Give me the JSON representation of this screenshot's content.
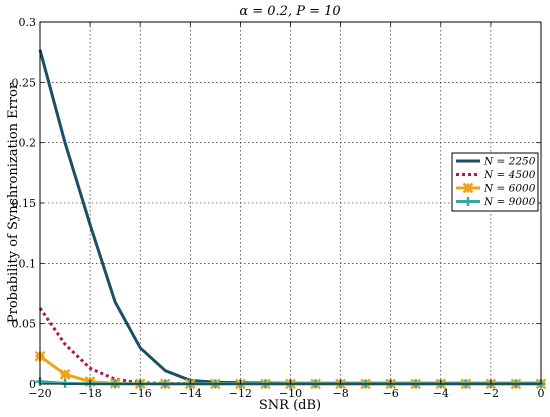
{
  "chart_data": {
    "type": "line",
    "title": "α = 0.2, P = 10",
    "xlabel": "SNR (dB)",
    "ylabel": "Probability of Synchronization Error",
    "xlim": [
      -20,
      0
    ],
    "ylim": [
      0,
      0.3
    ],
    "x_ticks": [
      -20,
      -18,
      -16,
      -14,
      -12,
      -10,
      -8,
      -6,
      -4,
      -2,
      0
    ],
    "x_tick_labels": [
      "−20",
      "−18",
      "−16",
      "−14",
      "−12",
      "−10",
      "−8",
      "−6",
      "−4",
      "−2",
      "0"
    ],
    "y_ticks": [
      0,
      0.05,
      0.1,
      0.15,
      0.2,
      0.25,
      0.3
    ],
    "y_tick_labels": [
      "0",
      "0.05",
      "0.1",
      "0.15",
      "0.2",
      "0.25",
      "0.3"
    ],
    "grid": true,
    "legend_position": "right",
    "x": [
      -20,
      -19,
      -18,
      -17,
      -16,
      -15,
      -14,
      -13,
      -12,
      -11,
      -10,
      -9,
      -8,
      -7,
      -6,
      -5,
      -4,
      -3,
      -2,
      -1,
      0
    ],
    "series": [
      {
        "name": "N = 2250",
        "color": "#1a4f66",
        "style": "solid",
        "marker": "none",
        "values": [
          0.277,
          0.2,
          0.132,
          0.068,
          0.03,
          0.011,
          0.003,
          0.0015,
          0.001,
          0.0008,
          0.0007,
          0.0006,
          0.0006,
          0.0006,
          0.0006,
          0.0006,
          0.0006,
          0.0006,
          0.0006,
          0.0006,
          0.0006
        ]
      },
      {
        "name": "N = 4500",
        "color": "#b0154f",
        "style": "dotted",
        "marker": "none",
        "values": [
          0.063,
          0.033,
          0.013,
          0.004,
          0.001,
          0.0005,
          0.0003,
          0.0002,
          0.0002,
          0.0002,
          0.0002,
          0.0002,
          0.0002,
          0.0002,
          0.0002,
          0.0002,
          0.0002,
          0.0002,
          0.0002,
          0.0002,
          0.0002
        ]
      },
      {
        "name": "N = 6000",
        "color": "#f0a314",
        "style": "solid",
        "marker": "x",
        "values": [
          0.023,
          0.008,
          0.002,
          0.0005,
          0.0002,
          0.0001,
          0.0001,
          0.0001,
          0.0001,
          0.0001,
          0.0001,
          0.0001,
          0.0001,
          0.0001,
          0.0001,
          0.0001,
          0.0001,
          0.0001,
          0.0001,
          0.0001,
          0.0001
        ]
      },
      {
        "name": "N = 9000",
        "color": "#3aa6a6",
        "style": "solid",
        "marker": "plus",
        "values": [
          0.002,
          0.0005,
          0.0002,
          0.0001,
          0.0001,
          0.0001,
          0.0001,
          0.0001,
          0.0001,
          0.0001,
          0.0001,
          0.0001,
          0.0001,
          0.0001,
          0.0001,
          0.0001,
          0.0001,
          0.0001,
          0.0001,
          0.0001,
          0.0001
        ]
      }
    ]
  }
}
